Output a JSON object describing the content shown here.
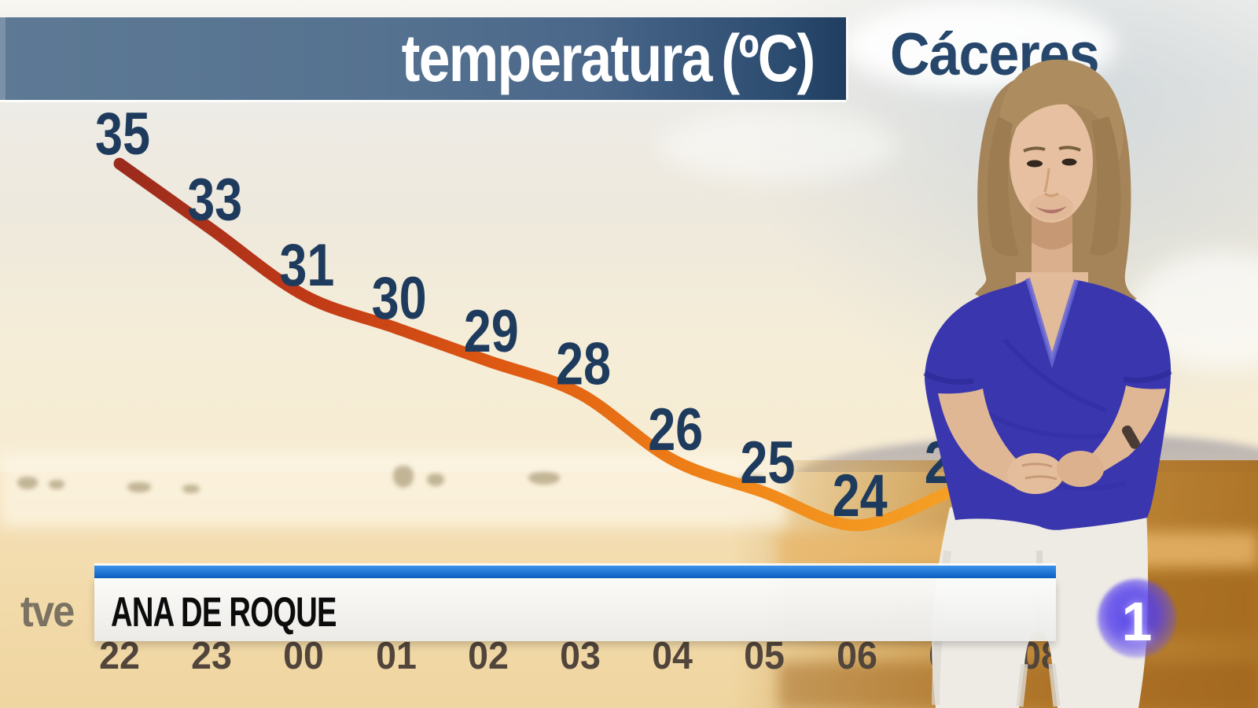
{
  "header": {
    "title": "temperatura",
    "unit": "(ºC)",
    "location": "Cáceres"
  },
  "chart_data": {
    "type": "line",
    "title": "temperatura (ºC)",
    "location": "Cáceres",
    "x_axis": {
      "labels": [
        "22",
        "23",
        "00",
        "01",
        "02",
        "03",
        "04",
        "05",
        "06",
        "07",
        "08"
      ],
      "notes": "label 07 hidden behind presenter, label 08 partially visible between her legs"
    },
    "points": [
      {
        "hour": "22",
        "temp": 35
      },
      {
        "hour": "23",
        "temp": 33
      },
      {
        "hour": "00",
        "temp": 31
      },
      {
        "hour": "01",
        "temp": 30
      },
      {
        "hour": "02",
        "temp": 29
      },
      {
        "hour": "03",
        "temp": 28
      },
      {
        "hour": "04",
        "temp": 26
      },
      {
        "hour": "05",
        "temp": 25
      },
      {
        "hour": "06",
        "temp": 24
      },
      {
        "hour": "07",
        "temp": 25,
        "partially_occluded": true
      }
    ],
    "line_gradient": [
      "#9a2b1d",
      "#c03917",
      "#e05c12",
      "#ef8318",
      "#f59f24"
    ],
    "temp_label_color": "#1e3b5e",
    "time_label_color": "#52463c",
    "grid": false,
    "legend": null
  },
  "lower_third": {
    "presenter_name": "ANA DE ROQUE",
    "bar_color": "#1472d0"
  },
  "logos": {
    "network": "tve",
    "channel": "1"
  },
  "colors": {
    "header_bar_left": "#5d7994",
    "header_bar_right": "#1f3e60",
    "header_text": "#ffffff",
    "location_text": "#26476b"
  }
}
